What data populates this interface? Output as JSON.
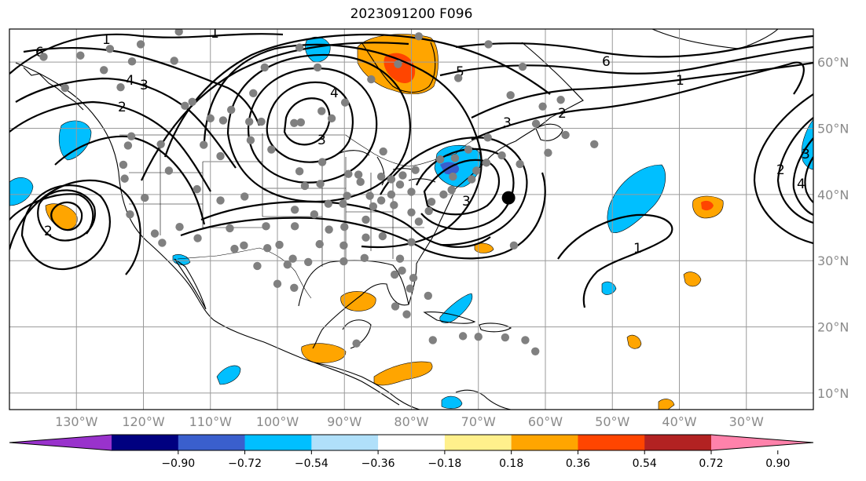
{
  "title": "2023091200 F096",
  "chart_data": {
    "type": "contour_map",
    "title": "2023091200 F096",
    "map_extent": {
      "lon_min": -140,
      "lon_max": -20,
      "lat_min": 7.5,
      "lat_max": 65
    },
    "lon_ticks": [
      {
        "lon": -130,
        "label": "130°W"
      },
      {
        "lon": -120,
        "label": "120°W"
      },
      {
        "lon": -110,
        "label": "110°W"
      },
      {
        "lon": -100,
        "label": "100°W"
      },
      {
        "lon": -90,
        "label": "90°W"
      },
      {
        "lon": -80,
        "label": "80°W"
      },
      {
        "lon": -70,
        "label": "70°W"
      },
      {
        "lon": -60,
        "label": "60°W"
      },
      {
        "lon": -50,
        "label": "50°W"
      },
      {
        "lon": -40,
        "label": "40°W"
      },
      {
        "lon": -30,
        "label": "30°W"
      }
    ],
    "lat_ticks": [
      {
        "lat": 60,
        "label": "60°N"
      },
      {
        "lat": 50,
        "label": "50°N"
      },
      {
        "lat": 40,
        "label": "40°N"
      },
      {
        "lat": 30,
        "label": "30°N"
      },
      {
        "lat": 20,
        "label": "20°N"
      },
      {
        "lat": 10,
        "label": "10°N"
      }
    ],
    "grid": true,
    "colorbar": {
      "orientation": "horizontal",
      "extend": "both",
      "levels": [
        -0.9,
        -0.72,
        -0.54,
        -0.36,
        -0.18,
        0.18,
        0.36,
        0.54,
        0.72,
        0.9
      ],
      "tick_labels": [
        "−0.90",
        "−0.72",
        "−0.54",
        "−0.36",
        "−0.18",
        "0.18",
        "0.36",
        "0.54",
        "0.72",
        "0.90"
      ],
      "colors": [
        "#9932cc",
        "#000080",
        "#3a5fcd",
        "#00bfff",
        "#b0e0fa",
        "#ffffff",
        "#fff08c",
        "#ffa500",
        "#ff4500",
        "#b22222",
        "#ff82ab"
      ]
    },
    "contour_labels": [
      "6",
      "6",
      "5",
      "4",
      "4",
      "3",
      "3",
      "3",
      "3",
      "2",
      "2",
      "2",
      "2",
      "1",
      "1",
      "1",
      "1",
      "4",
      "3"
    ],
    "observation_points": [
      [
        -134.9,
        60.8
      ],
      [
        -129.4,
        61.0
      ],
      [
        -120.4,
        62.7
      ],
      [
        -114.7,
        64.6
      ],
      [
        -125.0,
        62.0
      ],
      [
        -125.9,
        58.8
      ],
      [
        -121.7,
        60.1
      ],
      [
        -123.4,
        56.2
      ],
      [
        -131.7,
        56.1
      ],
      [
        -115.4,
        60.2
      ],
      [
        -101.9,
        59.2
      ],
      [
        -110.0,
        51.5
      ],
      [
        -113.8,
        53.4
      ],
      [
        -112.7,
        54.0
      ],
      [
        -106.9,
        52.8
      ],
      [
        -104.2,
        51.0
      ],
      [
        -108.1,
        51.2
      ],
      [
        -102.4,
        51.0
      ],
      [
        -97.5,
        50.8
      ],
      [
        -93.4,
        52.6
      ],
      [
        -96.5,
        50.9
      ],
      [
        -91.9,
        51.5
      ],
      [
        -94.0,
        59.2
      ],
      [
        -96.7,
        62.2
      ],
      [
        -103.6,
        55.3
      ],
      [
        -89.9,
        53.9
      ],
      [
        -86.0,
        57.4
      ],
      [
        -82.0,
        59.7
      ],
      [
        -78.9,
        63.9
      ],
      [
        -73.0,
        57.6
      ],
      [
        -68.5,
        62.7
      ],
      [
        -63.4,
        59.3
      ],
      [
        -60.4,
        53.3
      ],
      [
        -65.2,
        55.0
      ],
      [
        -61.4,
        50.7
      ],
      [
        -57.7,
        54.3
      ],
      [
        -52.7,
        47.6
      ],
      [
        -57.0,
        49.0
      ],
      [
        -59.6,
        46.3
      ],
      [
        -63.8,
        44.6
      ],
      [
        -66.5,
        45.9
      ],
      [
        -68.6,
        48.6
      ],
      [
        -71.5,
        46.8
      ],
      [
        -73.5,
        45.5
      ],
      [
        -75.7,
        45.3
      ],
      [
        -79.4,
        43.7
      ],
      [
        -81.3,
        42.9
      ],
      [
        -83.0,
        42.3
      ],
      [
        -84.2,
        46.5
      ],
      [
        -87.9,
        43.0
      ],
      [
        -93.3,
        44.9
      ],
      [
        -96.7,
        43.5
      ],
      [
        -100.9,
        46.8
      ],
      [
        -104.0,
        48.2
      ],
      [
        -108.5,
        45.8
      ],
      [
        -111.0,
        47.5
      ],
      [
        -116.2,
        43.6
      ],
      [
        -117.4,
        47.6
      ],
      [
        -122.3,
        47.4
      ],
      [
        -123.0,
        44.5
      ],
      [
        -122.8,
        42.4
      ],
      [
        -121.8,
        48.8
      ],
      [
        -122.0,
        37.0
      ],
      [
        -119.8,
        39.5
      ],
      [
        -118.3,
        34.1
      ],
      [
        -117.2,
        32.7
      ],
      [
        -114.6,
        35.1
      ],
      [
        -111.9,
        33.4
      ],
      [
        -112.0,
        40.8
      ],
      [
        -108.5,
        39.1
      ],
      [
        -104.9,
        39.7
      ],
      [
        -101.7,
        35.2
      ],
      [
        -97.4,
        35.2
      ],
      [
        -95.4,
        29.8
      ],
      [
        -97.7,
        30.3
      ],
      [
        -98.5,
        29.4
      ],
      [
        -101.5,
        31.9
      ],
      [
        -106.4,
        31.8
      ],
      [
        -103.0,
        29.2
      ],
      [
        -100.0,
        26.5
      ],
      [
        -97.5,
        25.9
      ],
      [
        -94.5,
        37.0
      ],
      [
        -97.4,
        37.7
      ],
      [
        -95.9,
        41.3
      ],
      [
        -93.6,
        41.6
      ],
      [
        -90.2,
        38.6
      ],
      [
        -89.6,
        39.8
      ],
      [
        -86.2,
        39.8
      ],
      [
        -85.7,
        38.2
      ],
      [
        -86.8,
        36.2
      ],
      [
        -90.0,
        35.1
      ],
      [
        -92.3,
        34.7
      ],
      [
        -90.1,
        32.3
      ],
      [
        -90.1,
        29.9
      ],
      [
        -87.0,
        30.4
      ],
      [
        -84.3,
        33.7
      ],
      [
        -86.8,
        33.5
      ],
      [
        -81.7,
        30.3
      ],
      [
        -80.2,
        25.8
      ],
      [
        -82.5,
        27.9
      ],
      [
        -81.4,
        28.5
      ],
      [
        -80.0,
        32.8
      ],
      [
        -78.9,
        35.9
      ],
      [
        -77.4,
        37.5
      ],
      [
        -80.0,
        37.3
      ],
      [
        -82.6,
        38.4
      ],
      [
        -80.0,
        40.4
      ],
      [
        -77.0,
        38.9
      ],
      [
        -75.2,
        40.0
      ],
      [
        -74.0,
        40.7
      ],
      [
        -73.8,
        42.7
      ],
      [
        -71.0,
        42.3
      ],
      [
        -70.3,
        43.6
      ],
      [
        -68.8,
        44.8
      ],
      [
        -84.5,
        39.1
      ],
      [
        -83.0,
        40.0
      ],
      [
        -81.7,
        41.5
      ],
      [
        -87.6,
        41.9
      ],
      [
        -89.4,
        43.1
      ],
      [
        -92.4,
        38.6
      ],
      [
        -107.1,
        34.9
      ],
      [
        -105.0,
        32.3
      ],
      [
        -99.7,
        32.4
      ],
      [
        -93.7,
        32.5
      ],
      [
        -64.7,
        32.3
      ],
      [
        -77.5,
        24.7
      ],
      [
        -66.0,
        18.4
      ],
      [
        -70.0,
        18.5
      ],
      [
        -72.3,
        18.6
      ],
      [
        -76.8,
        18.0
      ],
      [
        -82.4,
        23.1
      ],
      [
        -80.7,
        21.9
      ],
      [
        -61.5,
        16.3
      ],
      [
        -63.0,
        18.0
      ],
      [
        -79.7,
        27.4
      ],
      [
        -88.2,
        17.5
      ],
      [
        -84.5,
        42.7
      ]
    ],
    "marker": {
      "lon": -65.5,
      "lat": 39.5,
      "color": "#000000"
    }
  }
}
